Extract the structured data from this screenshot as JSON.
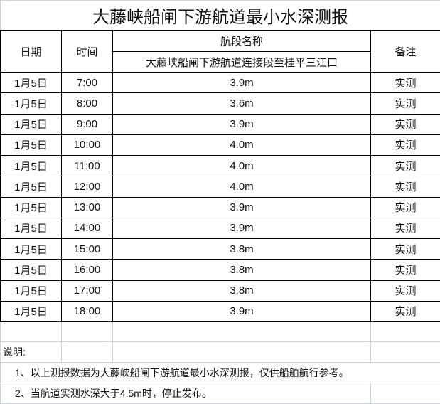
{
  "title": "大藤峡船闸下游航道最小水深测报",
  "header": {
    "date": "日期",
    "time": "时间",
    "section_group": "航段名称",
    "section_name": "大藤峡船闸下游航道连接段至桂平三江口",
    "remark": "备注"
  },
  "rows": [
    {
      "date": "1月5日",
      "time": "7:00",
      "depth": "3.9m",
      "remark": "实测"
    },
    {
      "date": "1月5日",
      "time": "8:00",
      "depth": "3.6m",
      "remark": "实测"
    },
    {
      "date": "1月5日",
      "time": "9:00",
      "depth": "3.9m",
      "remark": "实测"
    },
    {
      "date": "1月5日",
      "time": "10:00",
      "depth": "4.0m",
      "remark": "实测"
    },
    {
      "date": "1月5日",
      "time": "11:00",
      "depth": "4.0m",
      "remark": "实测"
    },
    {
      "date": "1月5日",
      "time": "12:00",
      "depth": "4.0m",
      "remark": "实测"
    },
    {
      "date": "1月5日",
      "time": "13:00",
      "depth": "3.9m",
      "remark": "实测"
    },
    {
      "date": "1月5日",
      "time": "14:00",
      "depth": "3.9m",
      "remark": "实测"
    },
    {
      "date": "1月5日",
      "time": "15:00",
      "depth": "3.8m",
      "remark": "实测"
    },
    {
      "date": "1月5日",
      "time": "16:00",
      "depth": "3.8m",
      "remark": "实测"
    },
    {
      "date": "1月5日",
      "time": "17:00",
      "depth": "3.8m",
      "remark": "实测"
    },
    {
      "date": "1月5日",
      "time": "18:00",
      "depth": "3.9m",
      "remark": "实测"
    }
  ],
  "notes": {
    "label": "说明:",
    "items": [
      "1、以上测报数据为大藤峡船闸下游航道最小水深测报，仅供船舶航行参考。",
      "2、当航道实测水深大于4.5m时，停止发布。"
    ]
  }
}
